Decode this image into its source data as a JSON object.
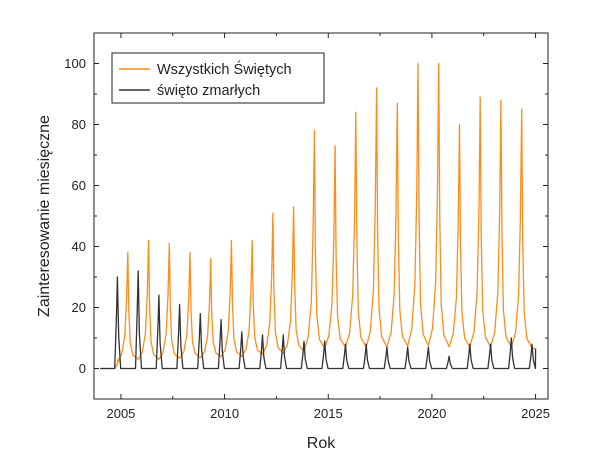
{
  "chart_data": {
    "type": "line",
    "title": "",
    "xlabel": "Rok",
    "ylabel": "Zainteresowanie miesięczne",
    "xlim": [
      2003.7,
      2025.6
    ],
    "ylim": [
      -10,
      110
    ],
    "xticks": [
      2005,
      2010,
      2015,
      2020,
      2025
    ],
    "yticks": [
      0,
      20,
      40,
      60,
      80,
      100
    ],
    "grid": false,
    "legend_position": "top-left",
    "series": [
      {
        "name": "Wszystkich Świętych",
        "color": "#ff8c1a",
        "start": [
          2004.0,
          0
        ],
        "baseline": [
          [
            2004.0,
            0
          ],
          [
            2005.0,
            3
          ],
          [
            2006.0,
            3
          ],
          [
            2007.0,
            3
          ],
          [
            2008.0,
            3.5
          ],
          [
            2009.0,
            3.5
          ],
          [
            2010.0,
            4
          ],
          [
            2011.0,
            4
          ],
          [
            2012.0,
            5
          ],
          [
            2013.0,
            5
          ],
          [
            2014.0,
            6
          ],
          [
            2015.0,
            7
          ],
          [
            2016.0,
            7
          ],
          [
            2017.0,
            7
          ],
          [
            2018.0,
            7
          ],
          [
            2019.0,
            7.5
          ],
          [
            2020.0,
            7.5
          ],
          [
            2021.0,
            7
          ],
          [
            2022.0,
            7
          ],
          [
            2023.0,
            7
          ],
          [
            2024.0,
            7
          ],
          [
            2025.0,
            6.5
          ]
        ],
        "peaks": [
          [
            2005.33,
            38
          ],
          [
            2006.33,
            42
          ],
          [
            2007.33,
            41
          ],
          [
            2008.33,
            38
          ],
          [
            2009.33,
            36
          ],
          [
            2010.33,
            42
          ],
          [
            2011.33,
            42
          ],
          [
            2012.33,
            51
          ],
          [
            2013.33,
            53
          ],
          [
            2014.33,
            78
          ],
          [
            2015.33,
            73
          ],
          [
            2016.33,
            84
          ],
          [
            2017.33,
            92
          ],
          [
            2018.33,
            87
          ],
          [
            2019.33,
            100
          ],
          [
            2020.33,
            100
          ],
          [
            2021.33,
            80
          ],
          [
            2022.33,
            89
          ],
          [
            2023.33,
            88
          ],
          [
            2024.33,
            85
          ]
        ],
        "end": [
          2025.0,
          6.5
        ]
      },
      {
        "name": "święto zmarłych",
        "color": "#333333",
        "start": [
          2004.0,
          0
        ],
        "peaks": [
          [
            2004.83,
            30
          ],
          [
            2005.83,
            32
          ],
          [
            2006.83,
            24
          ],
          [
            2007.83,
            21
          ],
          [
            2008.83,
            18
          ],
          [
            2009.83,
            16
          ],
          [
            2010.83,
            12
          ],
          [
            2011.83,
            11
          ],
          [
            2012.83,
            11
          ],
          [
            2013.83,
            9
          ],
          [
            2014.83,
            9
          ],
          [
            2015.83,
            8
          ],
          [
            2016.83,
            8
          ],
          [
            2017.83,
            7
          ],
          [
            2018.83,
            7
          ],
          [
            2019.83,
            7
          ],
          [
            2020.83,
            4
          ],
          [
            2021.83,
            8
          ],
          [
            2022.83,
            8
          ],
          [
            2023.83,
            10
          ],
          [
            2024.83,
            8
          ]
        ],
        "end": [
          2025.0,
          6.5
        ]
      }
    ]
  }
}
